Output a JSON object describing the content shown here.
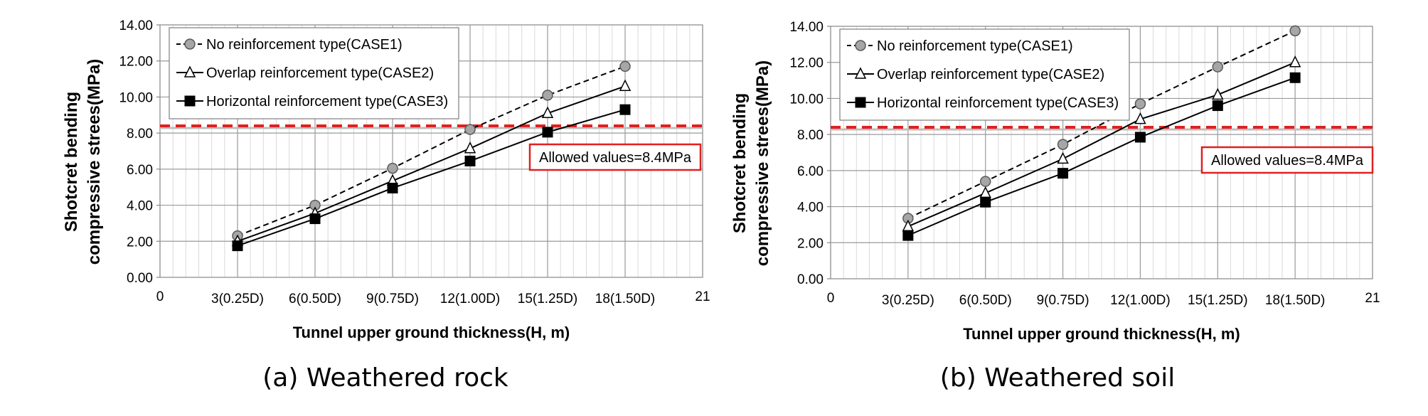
{
  "chart_data": [
    {
      "type": "line",
      "caption": "(a) Weathered rock",
      "xlabel": "Tunnel upper ground thickness(H, m)",
      "ylabel_lines": [
        "Shotcret bending",
        "compressive strees(MPa)"
      ],
      "xlim": [
        0,
        21
      ],
      "ylim": [
        0,
        14
      ],
      "x_ticks": [
        "0",
        "3(0.25D)",
        "6(0.50D)",
        "9(0.75D)",
        "12(1.00D)",
        "15(1.25D)",
        "18(1.50D)",
        "21"
      ],
      "y_ticks": [
        "0.00",
        "2.00",
        "4.00",
        "6.00",
        "8.00",
        "10.00",
        "12.00",
        "14.00"
      ],
      "x": [
        3,
        6,
        9,
        12,
        15,
        18
      ],
      "series": [
        {
          "name": "No reinforcement type(CASE1)",
          "values": [
            2.3,
            4.0,
            6.05,
            8.2,
            10.1,
            11.7
          ],
          "line": "dashed",
          "marker": "circle"
        },
        {
          "name": "Overlap reinforcement type(CASE2)",
          "values": [
            2.0,
            3.55,
            5.35,
            7.15,
            9.1,
            10.6
          ],
          "line": "solid",
          "marker": "triangle"
        },
        {
          "name": "Horizontal reinforcement type(CASE3)",
          "values": [
            1.75,
            3.25,
            4.95,
            6.45,
            8.05,
            9.3
          ],
          "line": "solid",
          "marker": "square"
        }
      ],
      "allowed_value": 8.4,
      "allowed_label": "Allowed values=8.4MPa",
      "legend_position": "top-left",
      "grid": true
    },
    {
      "type": "line",
      "caption": "(b) Weathered soil",
      "xlabel": "Tunnel upper ground thickness(H, m)",
      "ylabel_lines": [
        "Shotcret bending",
        "compressive strees(MPa)"
      ],
      "xlim": [
        0,
        21
      ],
      "ylim": [
        0,
        14
      ],
      "x_ticks": [
        "0",
        "3(0.25D)",
        "6(0.50D)",
        "9(0.75D)",
        "12(1.00D)",
        "15(1.25D)",
        "18(1.50D)",
        "21"
      ],
      "y_ticks": [
        "0.00",
        "2.00",
        "4.00",
        "6.00",
        "8.00",
        "10.00",
        "12.00",
        "14.00"
      ],
      "x": [
        3,
        6,
        9,
        12,
        15,
        18
      ],
      "series": [
        {
          "name": "No reinforcement type(CASE1)",
          "values": [
            3.35,
            5.4,
            7.45,
            9.7,
            11.75,
            13.75
          ],
          "line": "dashed",
          "marker": "circle"
        },
        {
          "name": "Overlap reinforcement type(CASE2)",
          "values": [
            2.9,
            4.75,
            6.65,
            8.85,
            10.2,
            12.0
          ],
          "line": "solid",
          "marker": "triangle"
        },
        {
          "name": "Horizontal reinforcement type(CASE3)",
          "values": [
            2.4,
            4.25,
            5.85,
            7.85,
            9.6,
            11.15
          ],
          "line": "solid",
          "marker": "square"
        }
      ],
      "allowed_value": 8.4,
      "allowed_label": "Allowed values=8.4MPa",
      "legend_position": "top-left",
      "grid": true
    }
  ]
}
